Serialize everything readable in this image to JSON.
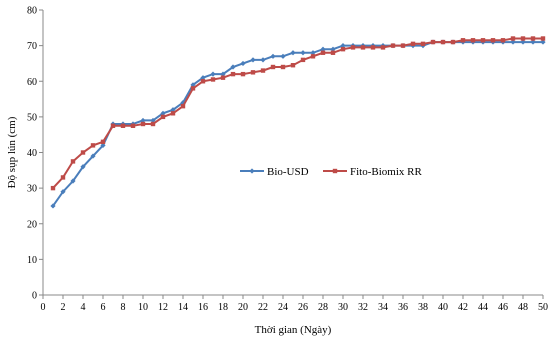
{
  "chart_data": {
    "type": "line",
    "xlabel": "Thời gian (Ngày)",
    "ylabel": "Độ sụp lún (cm)",
    "ylim": [
      0,
      80
    ],
    "xlim": [
      0,
      50
    ],
    "yticks": [
      0,
      10,
      20,
      30,
      40,
      50,
      60,
      70,
      80
    ],
    "xticks": [
      0,
      2,
      4,
      6,
      8,
      10,
      12,
      14,
      16,
      18,
      20,
      22,
      24,
      26,
      28,
      30,
      32,
      34,
      36,
      38,
      40,
      42,
      44,
      46,
      48,
      50
    ],
    "grid": false,
    "legend_position": "middle-right",
    "x": [
      1,
      2,
      3,
      4,
      5,
      6,
      7,
      8,
      9,
      10,
      11,
      12,
      13,
      14,
      15,
      16,
      17,
      18,
      19,
      20,
      21,
      22,
      23,
      24,
      25,
      26,
      27,
      28,
      29,
      30,
      31,
      32,
      33,
      34,
      35,
      36,
      37,
      38,
      39,
      40,
      41,
      42,
      43,
      44,
      45,
      46,
      47,
      48,
      49,
      50
    ],
    "series": [
      {
        "name": "Bio-USD",
        "color": "#4a7ebb",
        "marker": "diamond",
        "values": [
          25,
          29,
          32,
          36,
          39,
          42,
          48,
          48,
          48,
          49,
          49,
          51,
          52,
          54,
          59,
          61,
          62,
          62,
          64,
          65,
          66,
          66,
          67,
          67,
          68,
          68,
          68,
          69,
          69,
          70,
          70,
          70,
          70,
          70,
          70,
          70,
          70,
          70,
          71,
          71,
          71,
          71,
          71,
          71,
          71,
          71,
          71,
          71,
          71,
          71
        ]
      },
      {
        "name": "Fito-Biomix RR",
        "color": "#be4b48",
        "marker": "square",
        "values": [
          30,
          33,
          37.5,
          40,
          42,
          43,
          47.5,
          47.5,
          47.5,
          48,
          48,
          50,
          51,
          53,
          58,
          60,
          60.5,
          61,
          62,
          62,
          62.5,
          63,
          64,
          64,
          64.5,
          66,
          67,
          68,
          68,
          69,
          69.5,
          69.5,
          69.5,
          69.5,
          70,
          70,
          70.5,
          70.5,
          71,
          71,
          71,
          71.5,
          71.5,
          71.5,
          71.5,
          71.5,
          72,
          72,
          72,
          72
        ]
      }
    ]
  }
}
